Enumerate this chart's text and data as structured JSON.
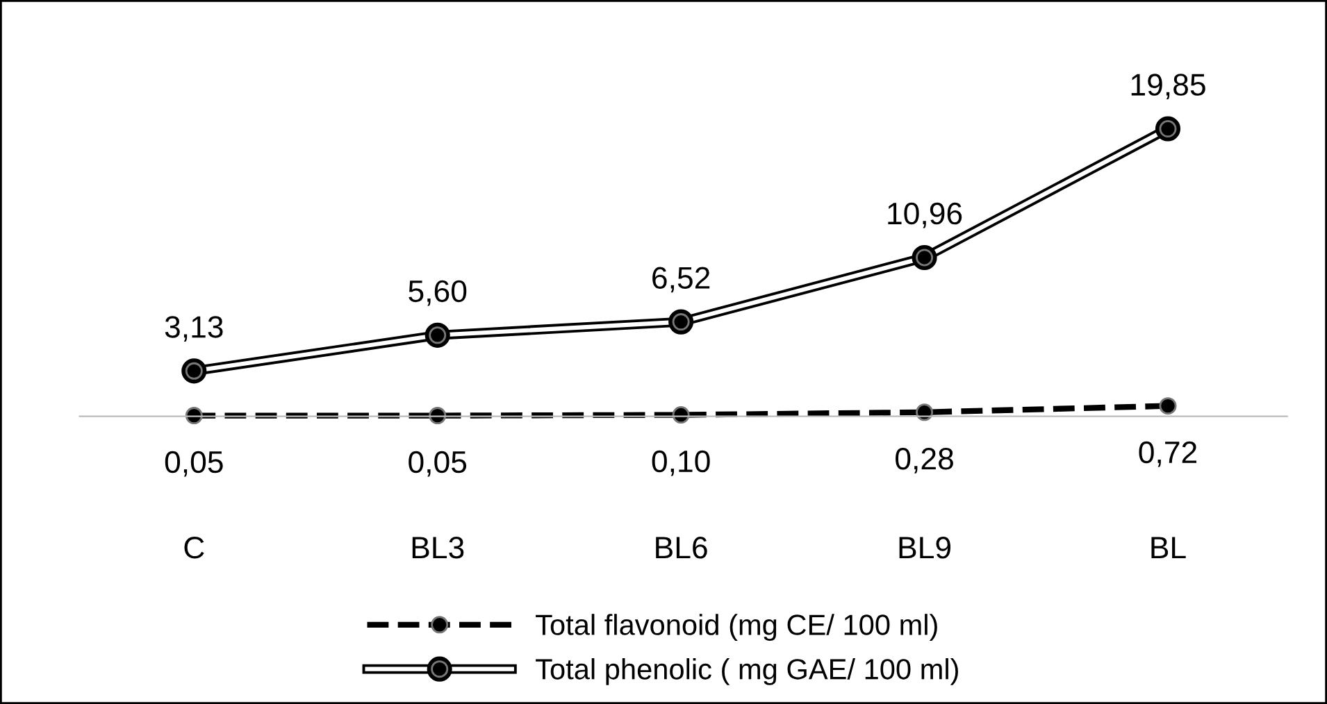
{
  "chart_data": {
    "type": "line",
    "categories": [
      "C",
      "BL3",
      "BL6",
      "BL9",
      "BL"
    ],
    "series": [
      {
        "name": "Total flavonoid (mg CE/ 100 ml)",
        "color": "#000000",
        "line_style": "dashed",
        "values": [
          0.05,
          0.05,
          0.1,
          0.28,
          0.72
        ],
        "value_labels": [
          "0,05",
          "0,05",
          "0,10",
          "0,28",
          "0,72"
        ]
      },
      {
        "name": "Total phenolic ( mg GAE/ 100 ml)",
        "color": "#000000",
        "line_style": "solid",
        "values": [
          3.13,
          5.6,
          6.52,
          10.96,
          19.85
        ],
        "value_labels": [
          "3,13",
          "5,60",
          "6,52",
          "10,96",
          "19,85"
        ]
      }
    ],
    "marker": "circle",
    "legend": "bottom",
    "grid": false
  }
}
